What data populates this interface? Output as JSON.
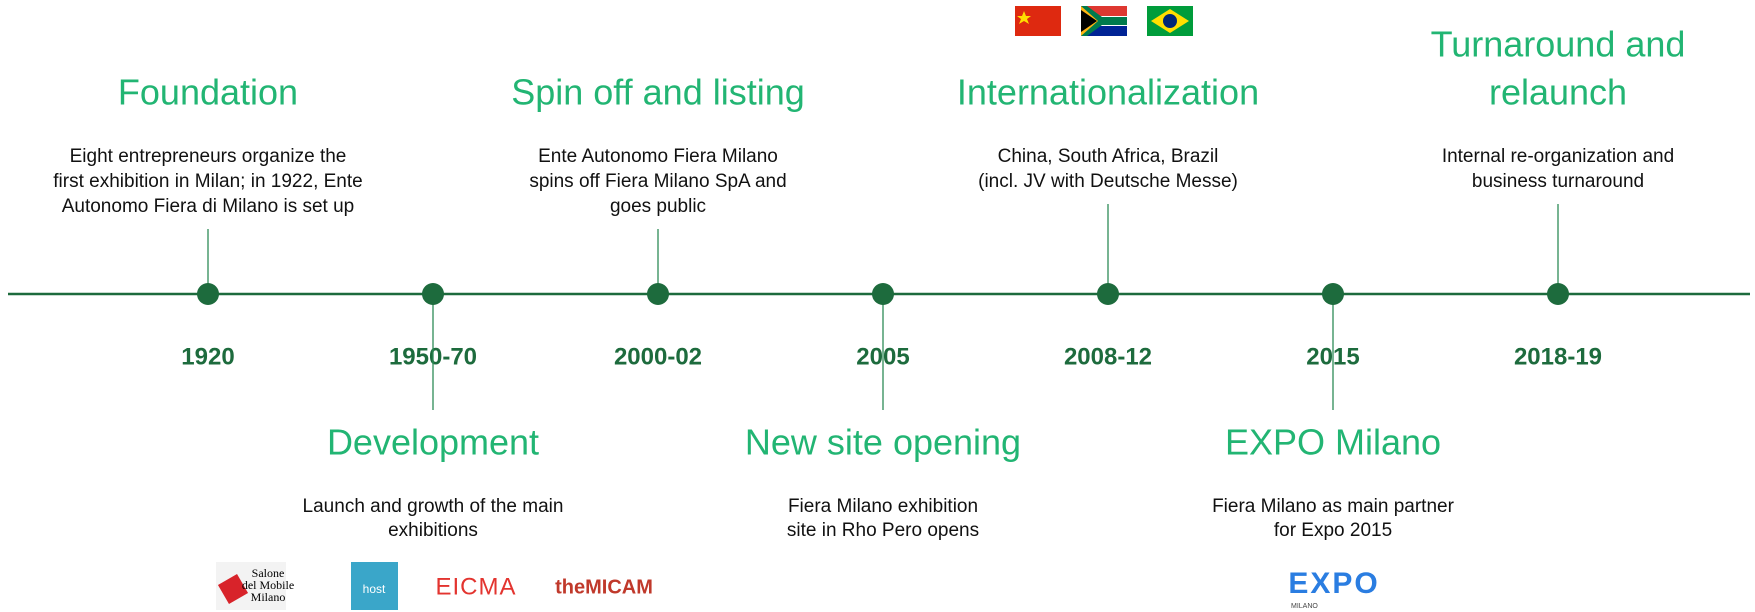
{
  "events": [
    {
      "year": "1920",
      "title": [
        "Foundation"
      ],
      "description": [
        "Eight entrepreneurs organize the",
        "first exhibition in Milan; in 1922, Ente",
        "Autonomo Fiera di Milano is set up"
      ]
    },
    {
      "year": "1950-70",
      "title": [
        "Development"
      ],
      "description": [
        "Launch and growth of the main",
        "exhibitions"
      ]
    },
    {
      "year": "2000-02",
      "title": [
        "Spin off and listing"
      ],
      "description": [
        "Ente Autonomo Fiera Milano",
        "spins off Fiera Milano SpA and",
        "goes public"
      ]
    },
    {
      "year": "2005",
      "title": [
        "New site opening"
      ],
      "description": [
        "Fiera Milano exhibition",
        "site in Rho Pero opens"
      ]
    },
    {
      "year": "2008-12",
      "title": [
        "Internationalization"
      ],
      "description": [
        "China, South Africa, Brazil",
        "(incl. JV with Deutsche Messe)"
      ]
    },
    {
      "year": "2015",
      "title": [
        "EXPO Milano"
      ],
      "description": [
        "Fiera Milano as main partner",
        "for Expo 2015"
      ]
    },
    {
      "year": "2018-19",
      "title": [
        "Turnaround and",
        "relaunch"
      ],
      "description": [
        "Internal re-organization and",
        "business turnaround"
      ]
    }
  ],
  "logos": {
    "salone": [
      "Salone",
      "del Mobile",
      "Milano"
    ],
    "host": "host",
    "eicma": "EICMA",
    "micam": "theMICAM",
    "expo": "EXPO",
    "expo_sub": "MILANO"
  }
}
